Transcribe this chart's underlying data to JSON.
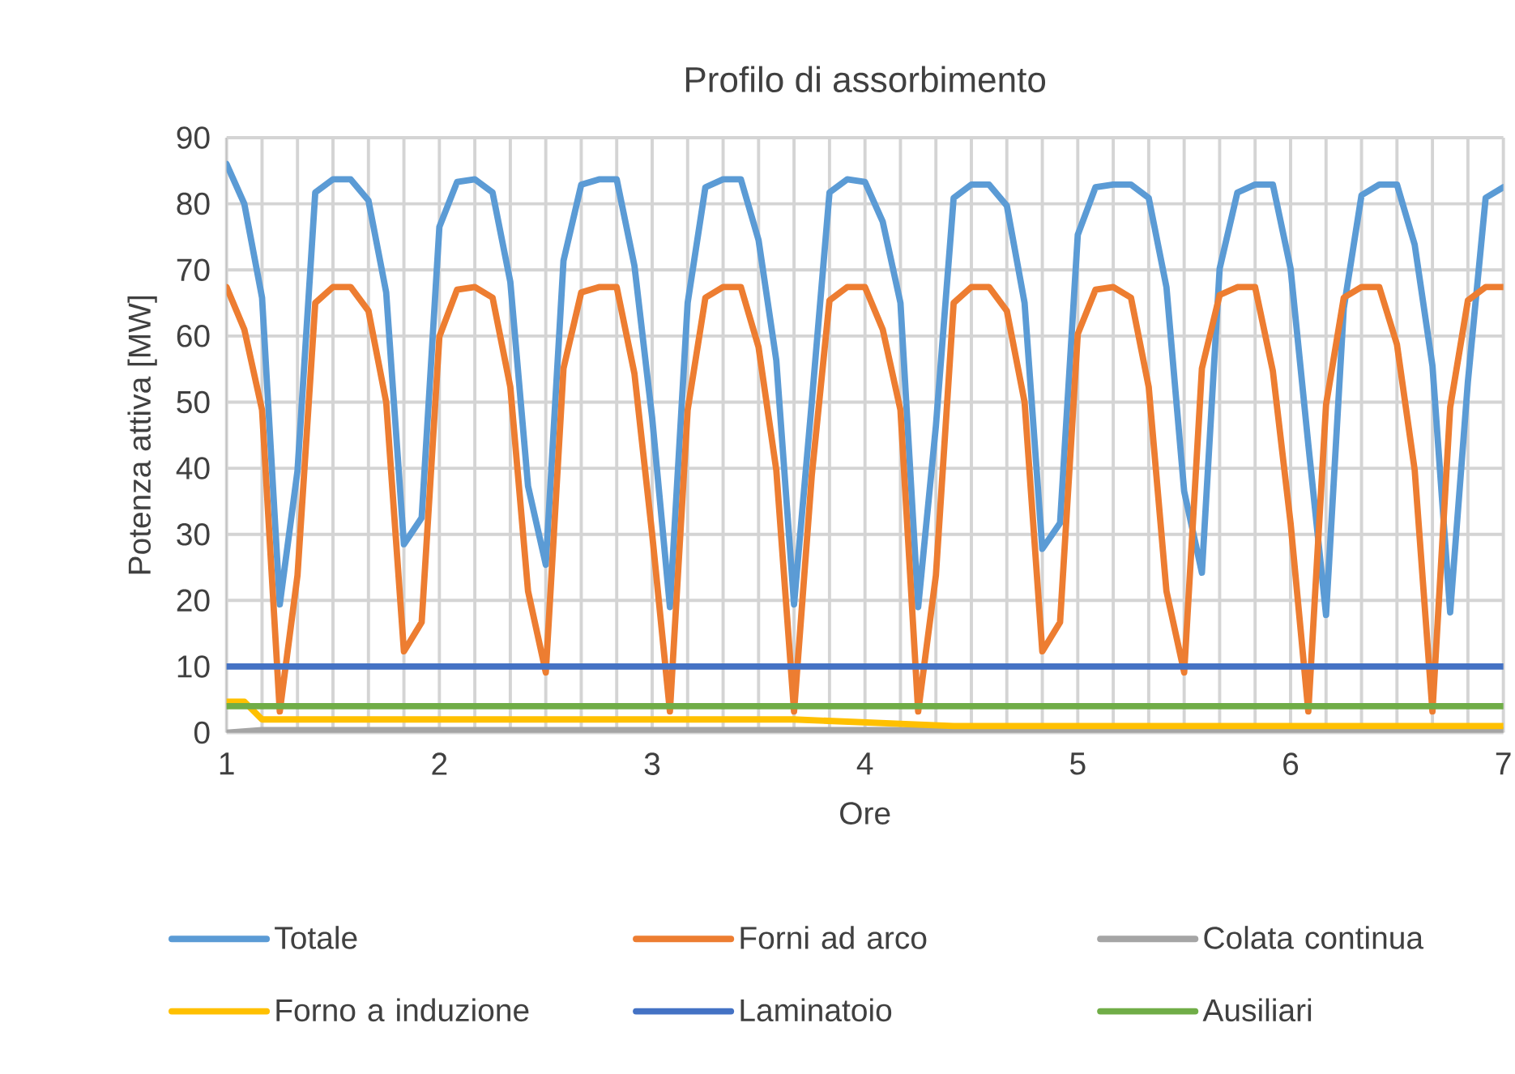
{
  "chart_data": {
    "type": "line",
    "title": "Profilo di assorbimento",
    "xlabel": "Ore",
    "ylabel": "Potenza attiva [MW]",
    "x": [
      1,
      1.0833,
      1.1667,
      1.25,
      1.3333,
      1.4167,
      1.5,
      1.5833,
      1.6667,
      1.75,
      1.8333,
      1.9167,
      2,
      2.0833,
      2.1667,
      2.25,
      2.3333,
      2.4167,
      2.5,
      2.5833,
      2.6667,
      2.75,
      2.8333,
      2.9167,
      3,
      3.0833,
      3.1667,
      3.25,
      3.3333,
      3.4167,
      3.5,
      3.5833,
      3.6667,
      3.75,
      3.8333,
      3.9167,
      4,
      4.0833,
      4.1667,
      4.25,
      4.3333,
      4.4167,
      4.5,
      4.5833,
      4.6667,
      4.75,
      4.8333,
      4.9167,
      5,
      5.0833,
      5.1667,
      5.25,
      5.3333,
      5.4167,
      5.5,
      5.5833,
      5.6667,
      5.75,
      5.8333,
      5.9167,
      6,
      6.0833,
      6.1667,
      6.25,
      6.3333,
      6.4167,
      6.5,
      6.5833,
      6.6667,
      6.75,
      6.8333,
      6.9167,
      7
    ],
    "series": [
      {
        "name": "Totale",
        "color": "#5b9bd5",
        "values": [
          86,
          80,
          65.8,
          19.4,
          39.6,
          81.7,
          83.7,
          83.7,
          80.5,
          66.6,
          28.5,
          32.5,
          76.5,
          83.3,
          83.7,
          81.7,
          68.2,
          37.3,
          25.4,
          71.4,
          82.9,
          83.7,
          83.7,
          70.6,
          47.6,
          19,
          65,
          82.5,
          83.7,
          83.7,
          74.5,
          56.3,
          19.4,
          50,
          81.7,
          83.7,
          83.3,
          77.3,
          65,
          19,
          46.4,
          80.9,
          82.9,
          82.9,
          79.7,
          65,
          27.8,
          31.7,
          75.3,
          82.5,
          82.9,
          82.9,
          80.9,
          67.4,
          36.5,
          24.2,
          70.2,
          81.7,
          82.9,
          82.9,
          70.2,
          43.6,
          17.8,
          64.2,
          81.3,
          82.9,
          82.9,
          73.8,
          55.5,
          18.2,
          53.1,
          80.9,
          82.5
        ]
      },
      {
        "name": "Forni ad arco",
        "color": "#ed7d31",
        "values": [
          67.4,
          61,
          48.8,
          3.2,
          23.8,
          65,
          67.4,
          67.4,
          63.8,
          50,
          12.3,
          16.7,
          59.9,
          67,
          67.4,
          65.8,
          52.3,
          21.4,
          9.1,
          55.1,
          66.6,
          67.4,
          67.4,
          54.3,
          30,
          3.2,
          48.8,
          65.8,
          67.4,
          67.4,
          58.3,
          39.7,
          3.2,
          38.9,
          65.4,
          67.4,
          67.4,
          61,
          48.8,
          3.2,
          23.8,
          65,
          67.4,
          67.4,
          63.8,
          50,
          12.3,
          16.7,
          60.3,
          67,
          67.4,
          65.8,
          52.3,
          21.4,
          9.1,
          55.1,
          66.2,
          67.4,
          67.4,
          54.7,
          31.7,
          3.2,
          49.6,
          65.8,
          67.4,
          67.4,
          58.7,
          39.7,
          3.2,
          49.2,
          65.4,
          67.4,
          67.4
        ]
      },
      {
        "name": "Colata continua",
        "color": "#a5a5a5",
        "x": [
          1,
          1.1667,
          7
        ],
        "values": [
          0,
          0.4,
          0.4
        ]
      },
      {
        "name": "Forno a induzione",
        "color": "#ffc000",
        "x": [
          1,
          1.0833,
          1.1667,
          3.6667,
          4.4167,
          7
        ],
        "values": [
          4.7,
          4.7,
          2,
          2,
          1,
          1
        ]
      },
      {
        "name": "Laminatoio",
        "color": "#4472c4",
        "x": [
          1,
          7
        ],
        "values": [
          10,
          10
        ]
      },
      {
        "name": "Ausiliari",
        "color": "#70ad47",
        "x": [
          1,
          7
        ],
        "values": [
          4,
          4
        ]
      }
    ],
    "xlim": [
      1,
      7
    ],
    "xticks": [
      1,
      2,
      3,
      4,
      5,
      6,
      7
    ],
    "ylim": [
      0,
      90
    ],
    "yticks": [
      0,
      10,
      20,
      30,
      40,
      50,
      60,
      70,
      80,
      90
    ],
    "grid": true,
    "legend": "bottom"
  }
}
